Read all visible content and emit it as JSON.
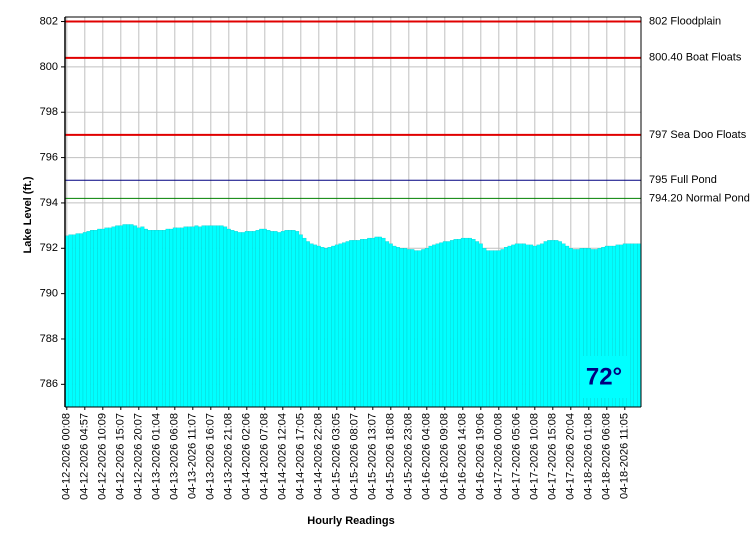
{
  "chart_data": {
    "type": "area",
    "y_label": "Lake Level (ft.)",
    "x_label": "Hourly Readings",
    "annotation": "72°",
    "color": "#00ffff",
    "ylim": [
      785,
      802.2
    ],
    "yticks": [
      786,
      788,
      790,
      792,
      794,
      796,
      798,
      800,
      802
    ],
    "grid": true,
    "reference_lines": [
      {
        "value": 802,
        "label": "802 Floodplain",
        "color": "#e00000"
      },
      {
        "value": 800.4,
        "label": "800.40 Boat Floats",
        "color": "#e00000"
      },
      {
        "value": 797,
        "label": "797 Sea Doo Floats",
        "color": "#e00000"
      },
      {
        "value": 795,
        "label": "795 Full Pond",
        "color": "#000080"
      },
      {
        "value": 794.2,
        "label": "794.20 Normal Pond",
        "color": "#008000"
      }
    ],
    "categories": [
      "04-12-2026 00:08",
      null,
      null,
      null,
      null,
      "04-12-2026 04:57",
      null,
      null,
      null,
      null,
      "04-12-2026 10:09",
      null,
      null,
      null,
      null,
      "04-12-2026 15:07",
      null,
      null,
      null,
      null,
      "04-12-2026 20:07",
      null,
      null,
      null,
      null,
      "04-13-2026 01:04",
      null,
      null,
      null,
      null,
      "04-13-2026 06:08",
      null,
      null,
      null,
      null,
      "04-13-2026 11:07",
      null,
      null,
      null,
      null,
      "04-13-2026 16:07",
      null,
      null,
      null,
      null,
      "04-13-2026 21:08",
      null,
      null,
      null,
      null,
      "04-14-2026 02:06",
      null,
      null,
      null,
      null,
      "04-14-2026 07:08",
      null,
      null,
      null,
      null,
      "04-14-2026 12:04",
      null,
      null,
      null,
      null,
      "04-14-2026 17:05",
      null,
      null,
      null,
      null,
      "04-14-2026 22:08",
      null,
      null,
      null,
      null,
      "04-15-2026 03:05",
      null,
      null,
      null,
      null,
      "04-15-2026 08:07",
      null,
      null,
      null,
      null,
      "04-15-2026 13:07",
      null,
      null,
      null,
      null,
      "04-15-2026 18:08",
      null,
      null,
      null,
      null,
      "04-15-2026 23:08",
      null,
      null,
      null,
      null,
      "04-16-2026 04:08",
      null,
      null,
      null,
      null,
      "04-16-2026 09:08",
      null,
      null,
      null,
      null,
      "04-16-2026 14:08",
      null,
      null,
      null,
      null,
      "04-16-2026 19:06",
      null,
      null,
      null,
      null,
      "04-17-2026 00:08",
      null,
      null,
      null,
      null,
      "04-17-2026 05:06",
      null,
      null,
      null,
      null,
      "04-17-2026 10:08",
      null,
      null,
      null,
      null,
      "04-17-2026 15:08",
      null,
      null,
      null,
      null,
      "04-17-2026 20:04",
      null,
      null,
      null,
      null,
      "04-18-2026 01:08",
      null,
      null,
      null,
      null,
      "04-18-2026 06:08",
      null,
      null,
      null,
      null,
      "04-18-2026 11:05",
      null,
      null,
      null,
      null
    ],
    "values": [
      792.55,
      792.6,
      792.6,
      792.65,
      792.65,
      792.7,
      792.75,
      792.8,
      792.8,
      792.85,
      792.85,
      792.9,
      792.9,
      792.95,
      793.0,
      793.0,
      793.05,
      793.05,
      793.05,
      793.0,
      792.9,
      792.95,
      792.85,
      792.8,
      792.8,
      792.8,
      792.8,
      792.8,
      792.85,
      792.85,
      792.9,
      792.9,
      792.9,
      792.95,
      792.95,
      792.95,
      793.0,
      792.95,
      793.0,
      793.0,
      793.0,
      793.0,
      793.0,
      793.0,
      792.95,
      792.85,
      792.8,
      792.75,
      792.7,
      792.7,
      792.75,
      792.75,
      792.75,
      792.8,
      792.85,
      792.85,
      792.8,
      792.75,
      792.75,
      792.7,
      792.75,
      792.8,
      792.8,
      792.8,
      792.75,
      792.6,
      792.45,
      792.3,
      792.2,
      792.15,
      792.1,
      792.05,
      792.0,
      792.05,
      792.1,
      792.15,
      792.2,
      792.25,
      792.3,
      792.35,
      792.35,
      792.35,
      792.4,
      792.4,
      792.45,
      792.45,
      792.5,
      792.5,
      792.45,
      792.3,
      792.2,
      792.1,
      792.05,
      792.0,
      792.0,
      791.95,
      791.95,
      791.9,
      791.9,
      791.95,
      792.0,
      792.1,
      792.15,
      792.2,
      792.25,
      792.3,
      792.3,
      792.35,
      792.4,
      792.4,
      792.45,
      792.45,
      792.45,
      792.4,
      792.3,
      792.2,
      792.0,
      791.9,
      791.9,
      791.9,
      791.9,
      791.95,
      792.05,
      792.1,
      792.15,
      792.2,
      792.2,
      792.2,
      792.15,
      792.15,
      792.1,
      792.15,
      792.2,
      792.3,
      792.35,
      792.35,
      792.35,
      792.3,
      792.2,
      792.1,
      792.0,
      791.95,
      791.95,
      792.0,
      792.0,
      792.0,
      791.95,
      791.95,
      792.0,
      792.05,
      792.1,
      792.1,
      792.1,
      792.15,
      792.15,
      792.2,
      792.2,
      792.2,
      792.2,
      792.2
    ]
  }
}
